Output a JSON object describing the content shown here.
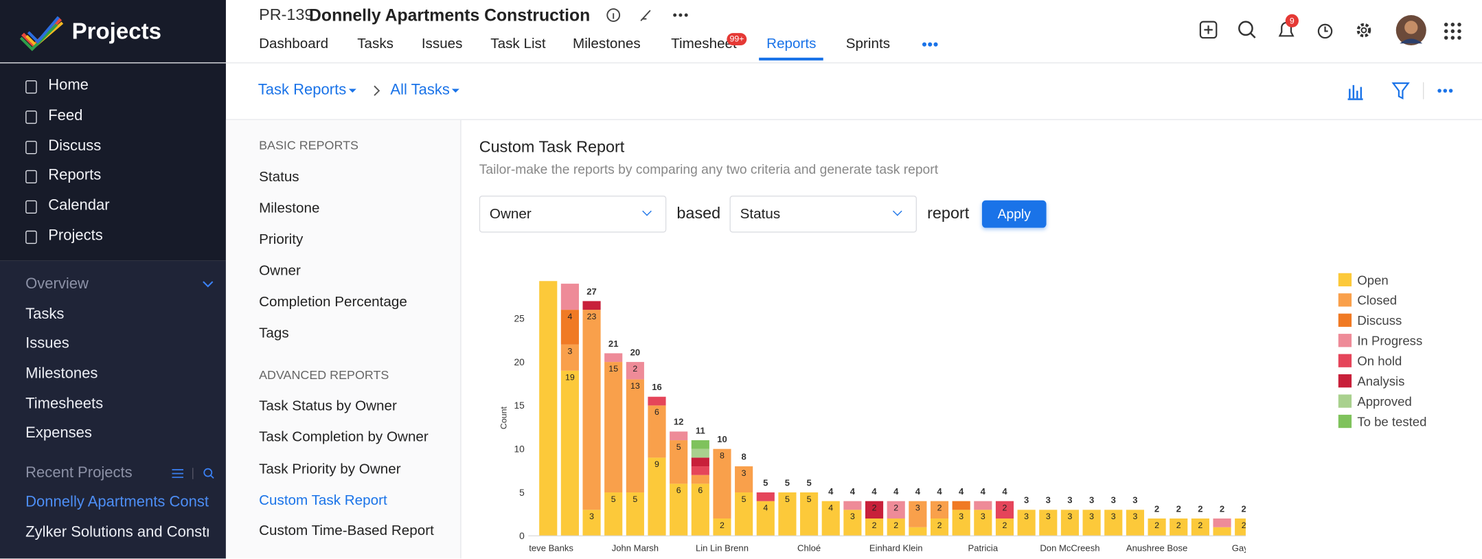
{
  "sidebar": {
    "brand": "Projects",
    "menu": [
      "Home",
      "Feed",
      "Discuss",
      "Reports",
      "Calendar",
      "Projects"
    ],
    "overview": {
      "title": "Overview",
      "items": [
        "Tasks",
        "Issues",
        "Milestones",
        "Timesheets",
        "Expenses"
      ]
    },
    "recent": {
      "title": "Recent Projects",
      "items": [
        "Donnelly Apartments Const",
        "Zylker Solutions and Constr"
      ]
    }
  },
  "header": {
    "project_id": "PR-139",
    "project_name": "Donnelly Apartments Construction",
    "tabs": [
      "Dashboard",
      "Tasks",
      "Issues",
      "Task List",
      "Milestones",
      "Timesheet",
      "Reports",
      "Sprints"
    ],
    "timesheet_badge": "99+",
    "notification_badge": "9"
  },
  "breadcrumb": [
    "Task Reports",
    "All Tasks"
  ],
  "report_menu": {
    "basic_title": "BASIC REPORTS",
    "basic": [
      "Status",
      "Milestone",
      "Priority",
      "Owner",
      "Completion Percentage",
      "Tags"
    ],
    "advanced_title": "ADVANCED REPORTS",
    "advanced": [
      "Task Status by Owner",
      "Task Completion by Owner",
      "Task Priority by Owner",
      "Custom Task Report",
      "Custom Time-Based Report"
    ]
  },
  "report": {
    "title": "Custom Task Report",
    "subtitle": "Tailor-make the reports by comparing any two criteria and generate task report",
    "criteria_1": "Owner",
    "joiner": "based",
    "criteria_2": "Status",
    "suffix": "report",
    "apply": "Apply"
  },
  "chart_data": {
    "type": "bar",
    "stacked": true,
    "y_label": "Count",
    "ylim": [
      0,
      29.3
    ],
    "yticks": [
      0,
      5,
      10,
      15,
      20,
      25
    ],
    "grid": false,
    "categories": [
      "Steve Banks",
      null,
      null,
      null,
      "John Marsh",
      null,
      null,
      null,
      "Lin Lin Brenn",
      null,
      null,
      null,
      "Chloé",
      null,
      null,
      null,
      "Einhard Klein",
      null,
      null,
      null,
      "Patricia",
      null,
      null,
      null,
      "Don McCreesh",
      null,
      null,
      null,
      "Anushree Bose",
      null,
      null,
      null,
      "Gayat"
    ],
    "totals": [
      null,
      null,
      27,
      21,
      20,
      16,
      12,
      11,
      10,
      8,
      5,
      5,
      5,
      4,
      4,
      4,
      4,
      4,
      4,
      4,
      4,
      4,
      3,
      3,
      3,
      3,
      3,
      3,
      2,
      2,
      2,
      2,
      2
    ],
    "series": [
      {
        "name": "Open",
        "color": "#fcc93a",
        "values": [
          31,
          19,
          3,
          5,
          5,
          9,
          6,
          6,
          2,
          5,
          4,
          5,
          5,
          4,
          3,
          2,
          2,
          1,
          2,
          3,
          3,
          2,
          3,
          3,
          3,
          3,
          3,
          3,
          2,
          2,
          2,
          1,
          2
        ]
      },
      {
        "name": "Closed",
        "color": "#f9a04b",
        "values": [
          0,
          3,
          23,
          15,
          13,
          6,
          5,
          1,
          8,
          3,
          0,
          0,
          0,
          0,
          0,
          0,
          0,
          3,
          2,
          0,
          0,
          0,
          0,
          0,
          0,
          0,
          0,
          0,
          0,
          0,
          0,
          0,
          0
        ]
      },
      {
        "name": "Discuss",
        "color": "#f07a24",
        "values": [
          0,
          4,
          0,
          0,
          0,
          0,
          0,
          0,
          0,
          0,
          0,
          0,
          0,
          0,
          0,
          0,
          0,
          0,
          0,
          1,
          0,
          0,
          0,
          0,
          0,
          0,
          0,
          0,
          0,
          0,
          0,
          0,
          0
        ]
      },
      {
        "name": "In Progress",
        "color": "#ee8b98",
        "values": [
          0,
          3,
          0,
          1,
          2,
          0,
          1,
          0,
          0,
          0,
          0,
          0,
          0,
          0,
          1,
          0,
          2,
          0,
          0,
          0,
          1,
          0,
          0,
          0,
          0,
          0,
          0,
          0,
          0,
          0,
          0,
          1,
          0
        ]
      },
      {
        "name": "On hold",
        "color": "#e5455a",
        "values": [
          0,
          0,
          0,
          0,
          0,
          1,
          0,
          1,
          0,
          0,
          1,
          0,
          0,
          0,
          0,
          0,
          0,
          0,
          0,
          0,
          0,
          2,
          0,
          0,
          0,
          0,
          0,
          0,
          0,
          0,
          0,
          0,
          0
        ]
      },
      {
        "name": "Analysis",
        "color": "#c8203a",
        "values": [
          0,
          0,
          1,
          0,
          0,
          0,
          0,
          1,
          0,
          0,
          0,
          0,
          0,
          0,
          0,
          2,
          0,
          0,
          0,
          0,
          0,
          0,
          0,
          0,
          0,
          0,
          0,
          0,
          0,
          0,
          0,
          0,
          0
        ]
      },
      {
        "name": "Approved",
        "color": "#a9d18e",
        "values": [
          0,
          0,
          0,
          0,
          0,
          0,
          0,
          1,
          0,
          0,
          0,
          0,
          0,
          0,
          0,
          0,
          0,
          0,
          0,
          0,
          0,
          0,
          0,
          0,
          0,
          0,
          0,
          0,
          0,
          0,
          0,
          0,
          0
        ]
      },
      {
        "name": "To be tested",
        "color": "#7fc25c",
        "values": [
          0,
          0,
          0,
          0,
          0,
          0,
          0,
          1,
          0,
          0,
          0,
          0,
          0,
          0,
          0,
          0,
          0,
          0,
          0,
          0,
          0,
          0,
          0,
          0,
          0,
          0,
          0,
          0,
          0,
          0,
          0,
          0,
          0
        ]
      }
    ]
  }
}
